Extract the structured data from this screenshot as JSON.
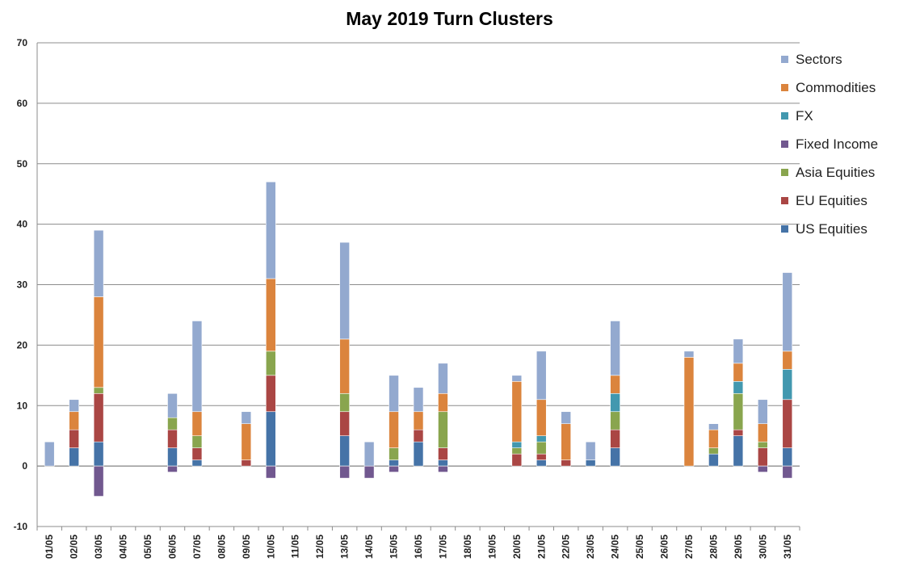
{
  "chart_data": {
    "type": "bar",
    "stacked": true,
    "title": "May 2019 Turn Clusters",
    "xlabel": "",
    "ylabel": "",
    "ylim": [
      -10,
      70
    ],
    "yticks": [
      -10,
      0,
      10,
      20,
      30,
      40,
      50,
      60,
      70
    ],
    "grid": true,
    "legend_position": "right",
    "categories": [
      "01/05",
      "02/05",
      "03/05",
      "04/05",
      "05/05",
      "06/05",
      "07/05",
      "08/05",
      "09/05",
      "10/05",
      "11/05",
      "12/05",
      "13/05",
      "14/05",
      "15/05",
      "16/05",
      "17/05",
      "18/05",
      "19/05",
      "20/05",
      "21/05",
      "22/05",
      "23/05",
      "24/05",
      "25/05",
      "26/05",
      "27/05",
      "28/05",
      "29/05",
      "30/05",
      "31/05"
    ],
    "series": [
      {
        "name": "US Equities",
        "color": "#4573A7",
        "values": [
          0,
          3,
          4,
          0,
          0,
          3,
          1,
          0,
          0,
          9,
          0,
          0,
          5,
          0,
          1,
          4,
          1,
          0,
          0,
          0,
          1,
          0,
          1,
          3,
          0,
          0,
          0,
          2,
          5,
          0,
          3
        ]
      },
      {
        "name": "EU Equities",
        "color": "#AA4644",
        "values": [
          0,
          3,
          8,
          0,
          0,
          3,
          2,
          0,
          1,
          6,
          0,
          0,
          4,
          0,
          0,
          2,
          2,
          0,
          0,
          2,
          1,
          1,
          0,
          3,
          0,
          0,
          0,
          0,
          1,
          3,
          8
        ]
      },
      {
        "name": "Asia Equities",
        "color": "#89A54E",
        "values": [
          0,
          0,
          1,
          0,
          0,
          2,
          2,
          0,
          0,
          4,
          0,
          0,
          3,
          0,
          2,
          0,
          6,
          0,
          0,
          1,
          2,
          0,
          0,
          3,
          0,
          0,
          0,
          1,
          6,
          1,
          0
        ]
      },
      {
        "name": "Fixed Income",
        "color": "#71588F",
        "values": [
          0,
          0,
          -5,
          0,
          0,
          -1,
          0,
          0,
          0,
          -2,
          0,
          0,
          -2,
          -2,
          -1,
          0,
          -1,
          0,
          0,
          0,
          0,
          0,
          0,
          0,
          0,
          0,
          0,
          0,
          0,
          -1,
          -2
        ]
      },
      {
        "name": "FX",
        "color": "#4298AF",
        "values": [
          0,
          0,
          0,
          0,
          0,
          0,
          0,
          0,
          0,
          0,
          0,
          0,
          0,
          0,
          0,
          0,
          0,
          0,
          0,
          1,
          1,
          0,
          0,
          3,
          0,
          0,
          0,
          0,
          2,
          0,
          5
        ]
      },
      {
        "name": "Commodities",
        "color": "#DB843D",
        "values": [
          0,
          3,
          15,
          0,
          0,
          0,
          4,
          0,
          6,
          12,
          0,
          0,
          9,
          0,
          6,
          3,
          3,
          0,
          0,
          10,
          6,
          6,
          0,
          3,
          0,
          0,
          18,
          3,
          3,
          3,
          3
        ]
      },
      {
        "name": "Sectors",
        "color": "#93A9CF",
        "values": [
          4,
          2,
          11,
          0,
          0,
          4,
          15,
          0,
          2,
          16,
          0,
          0,
          16,
          4,
          6,
          4,
          5,
          0,
          0,
          1,
          8,
          2,
          3,
          9,
          0,
          0,
          1,
          1,
          4,
          4,
          13
        ]
      }
    ]
  }
}
